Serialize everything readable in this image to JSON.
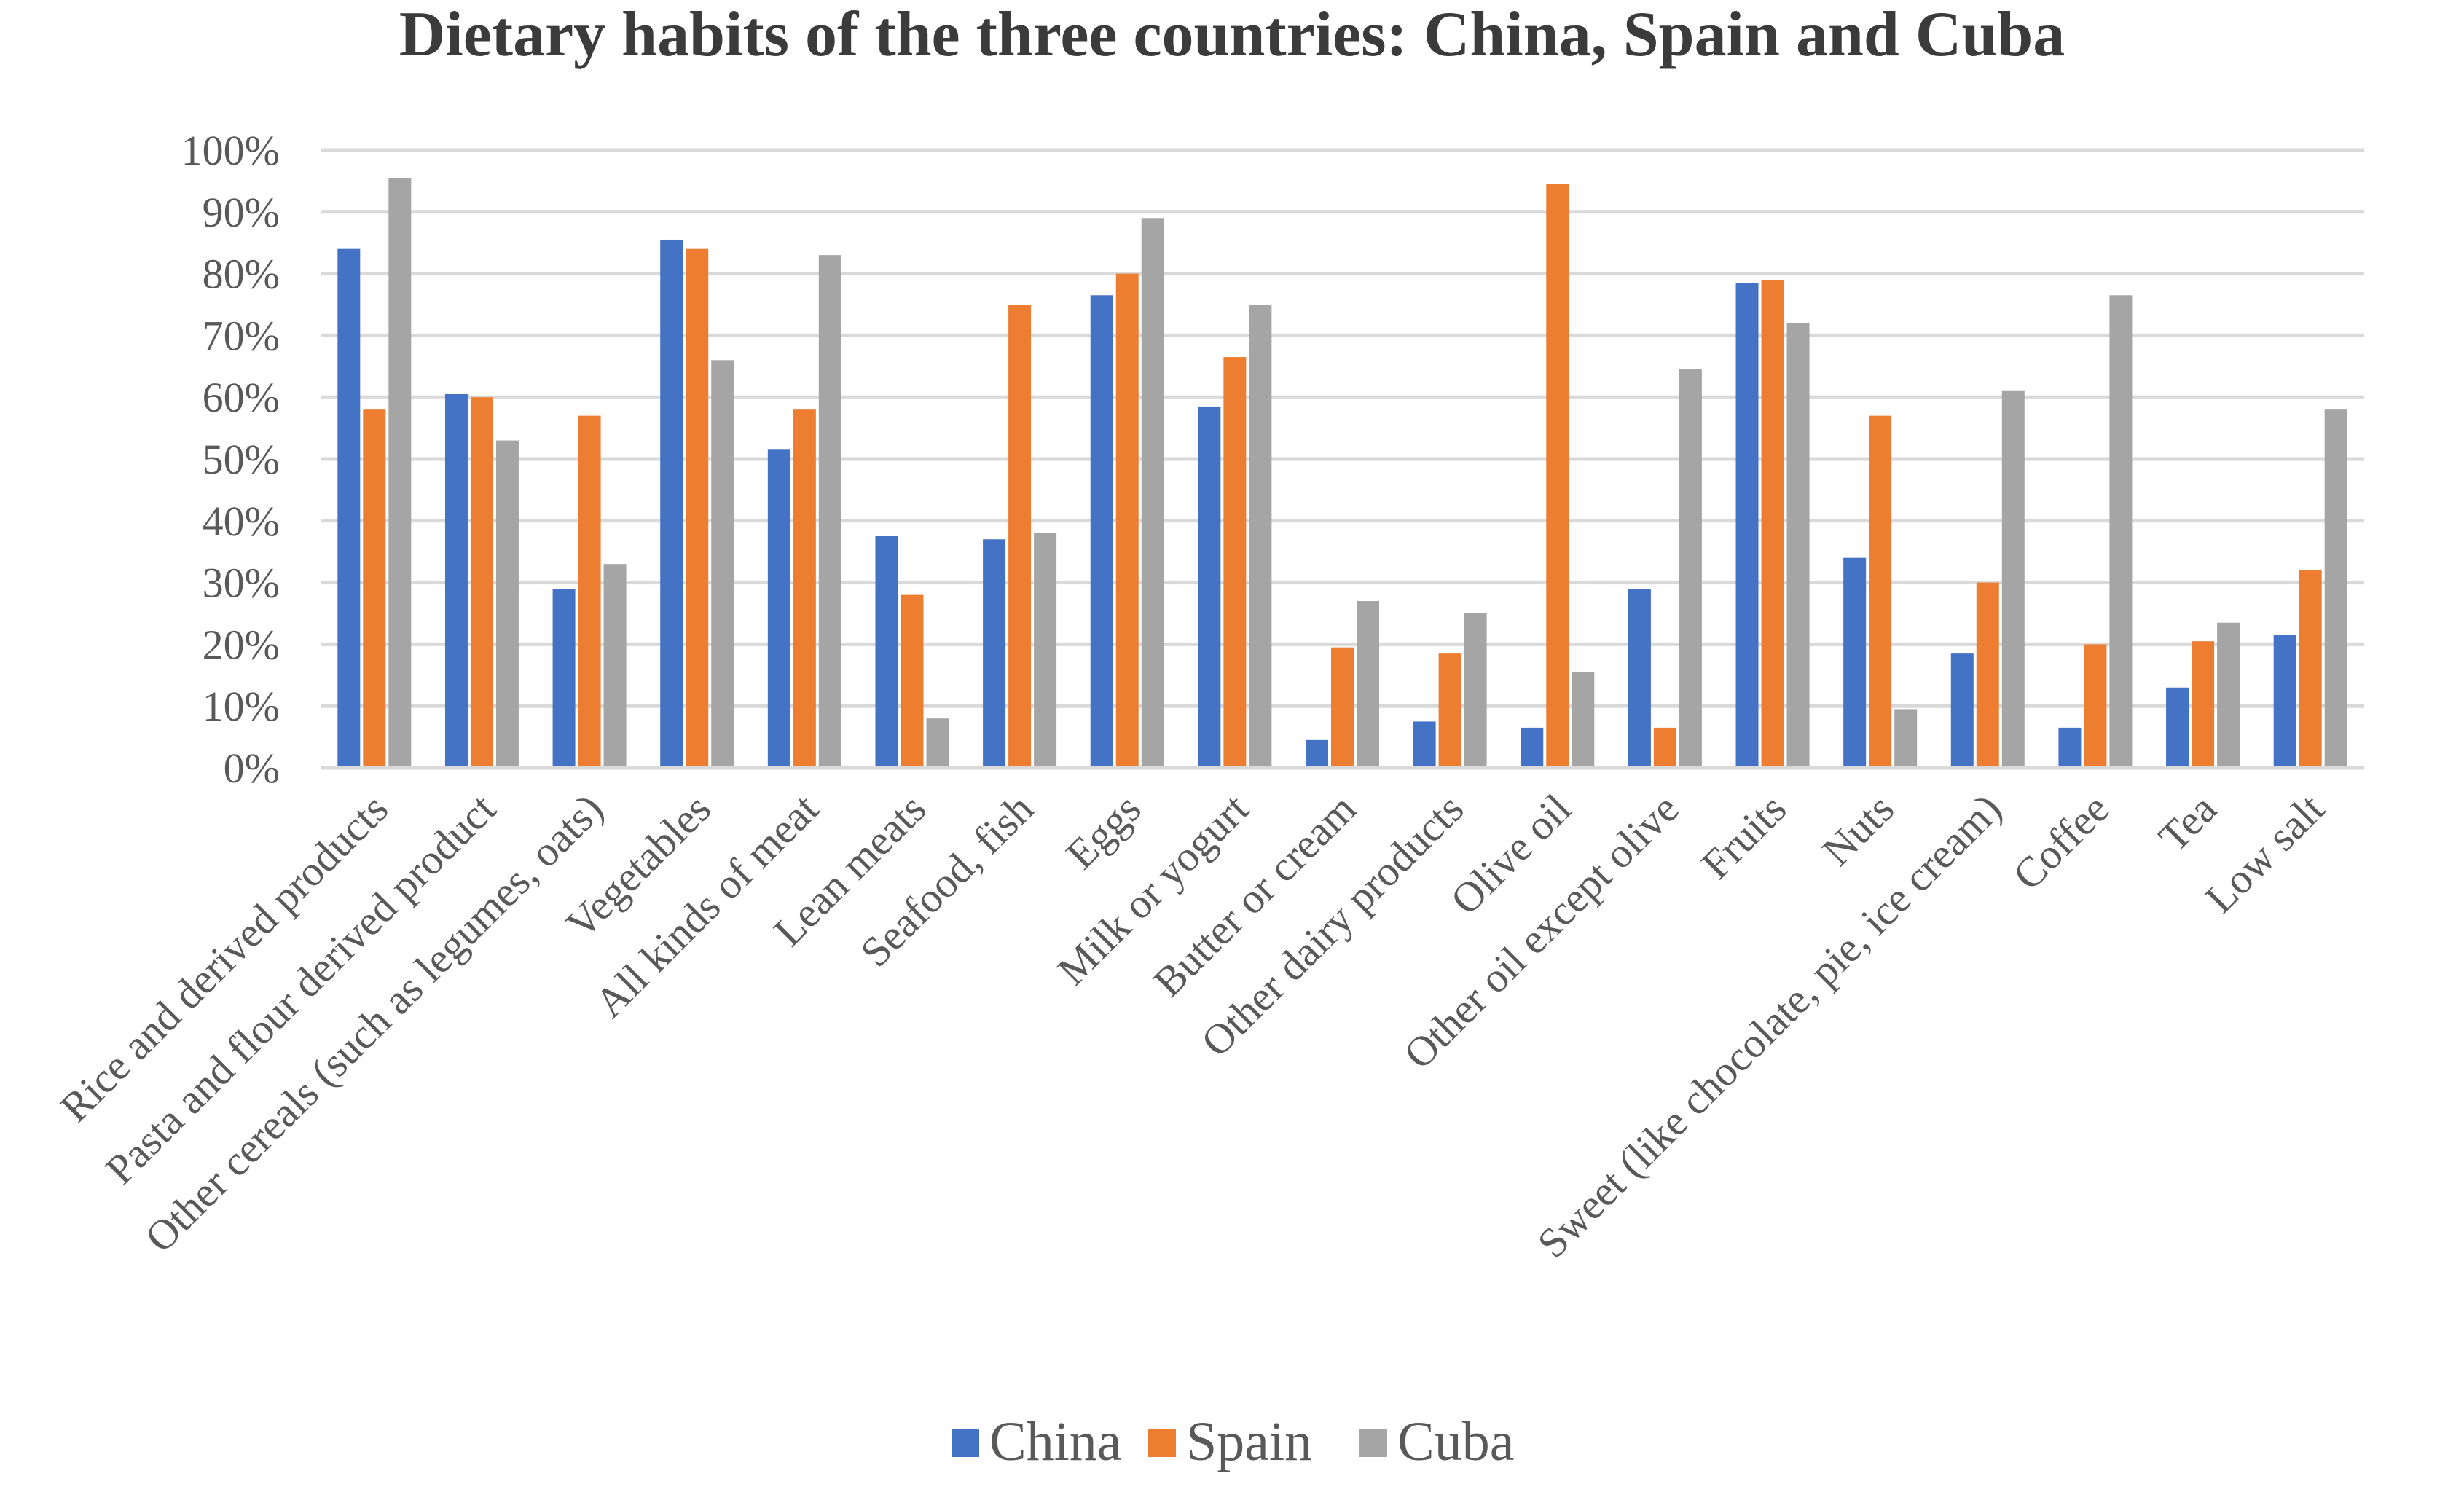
{
  "chart_data": {
    "type": "bar",
    "title": "Dietary habits of the three countries: China, Spain and Cuba",
    "xlabel": "",
    "ylabel": "",
    "ylim": [
      0,
      100
    ],
    "y_unit": "%",
    "y_ticks": [
      "0%",
      "10%",
      "20%",
      "30%",
      "40%",
      "50%",
      "60%",
      "70%",
      "80%",
      "90%",
      "100%"
    ],
    "grid": true,
    "legend_position": "bottom",
    "categories": [
      "Rice and derived products",
      "Pasta and flour derived product",
      "Other cereals (such as legumes, oats)",
      "Vegetables",
      "All kinds of meat",
      "Lean meats",
      "Seafood, fish",
      "Eggs",
      "Milk or yogurt",
      "Butter or cream",
      "Other dairy products",
      "Olive oil",
      "Other oil except olive",
      "Fruits",
      "Nuts",
      "Sweet (like chocolate, pie, ice cream)",
      "Coffee",
      "Tea",
      "Low salt"
    ],
    "series": [
      {
        "name": "China",
        "color": "#4472c4",
        "values": [
          84,
          60.5,
          29,
          85.5,
          51.5,
          37.5,
          37,
          76.5,
          58.5,
          4.5,
          7.5,
          6.5,
          29,
          78.5,
          34,
          18.5,
          6.5,
          13,
          21.5
        ]
      },
      {
        "name": "Spain",
        "color": "#ed7d31",
        "values": [
          58,
          60,
          57,
          84,
          58,
          28,
          75,
          80,
          66.5,
          19.5,
          18.5,
          94.5,
          6.5,
          79,
          57,
          30,
          20,
          20.5,
          32
        ]
      },
      {
        "name": "Cuba",
        "color": "#a5a5a5",
        "values": [
          95.5,
          53,
          33,
          66,
          83,
          8,
          38,
          89,
          75,
          27,
          25,
          15.5,
          64.5,
          72,
          9.5,
          61,
          76.5,
          23.5,
          58
        ]
      }
    ]
  }
}
